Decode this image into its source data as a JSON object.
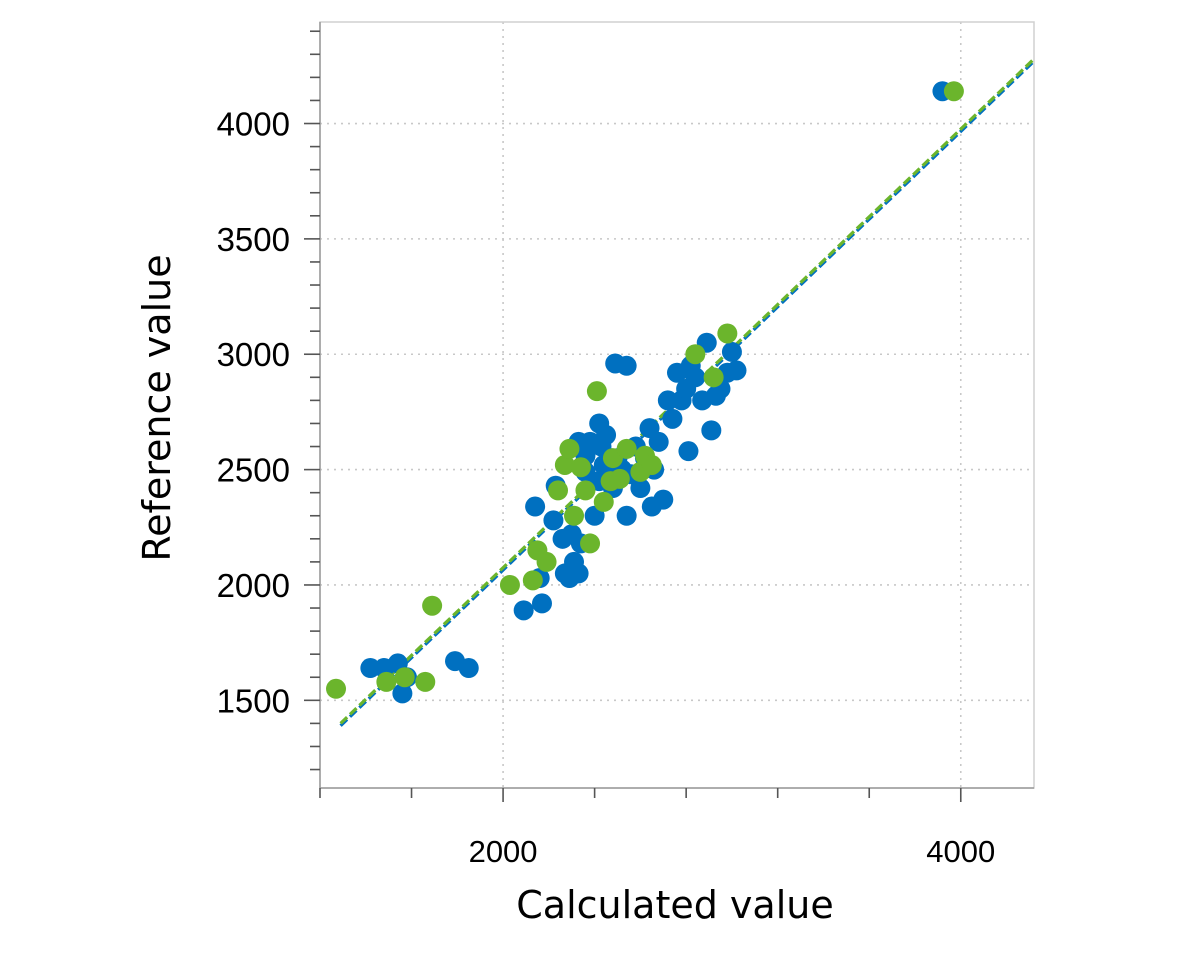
{
  "chart_data": {
    "type": "scatter",
    "title": "",
    "xlabel": "Calculated value",
    "ylabel": "Reference value",
    "xlim": [
      1200,
      4320
    ],
    "ylim": [
      1120,
      4440
    ],
    "x_ticks": [
      2000,
      4000
    ],
    "y_ticks": [
      1500,
      2000,
      2500,
      3000,
      3500,
      4000
    ],
    "x_minor_step": 400,
    "y_minor_step": 100,
    "grid": true,
    "legend": "none",
    "series": [
      {
        "color": "#0070C0",
        "points": [
          [
            1420,
            1640
          ],
          [
            1480,
            1640
          ],
          [
            1540,
            1660
          ],
          [
            1560,
            1530
          ],
          [
            1580,
            1600
          ],
          [
            1790,
            1670
          ],
          [
            1850,
            1640
          ],
          [
            2090,
            1890
          ],
          [
            2140,
            2340
          ],
          [
            2160,
            2030
          ],
          [
            2170,
            1920
          ],
          [
            2220,
            2280
          ],
          [
            2230,
            2430
          ],
          [
            2260,
            2200
          ],
          [
            2270,
            2050
          ],
          [
            2290,
            2030
          ],
          [
            2300,
            2220
          ],
          [
            2310,
            2100
          ],
          [
            2330,
            2050
          ],
          [
            2340,
            2180
          ],
          [
            2330,
            2620
          ],
          [
            2360,
            2490
          ],
          [
            2360,
            2560
          ],
          [
            2380,
            2620
          ],
          [
            2400,
            2300
          ],
          [
            2420,
            2450
          ],
          [
            2420,
            2700
          ],
          [
            2430,
            2600
          ],
          [
            2440,
            2520
          ],
          [
            2450,
            2650
          ],
          [
            2460,
            2480
          ],
          [
            2470,
            2550
          ],
          [
            2480,
            2420
          ],
          [
            2490,
            2960
          ],
          [
            2500,
            2550
          ],
          [
            2520,
            2500
          ],
          [
            2540,
            2950
          ],
          [
            2540,
            2300
          ],
          [
            2560,
            2480
          ],
          [
            2580,
            2600
          ],
          [
            2600,
            2420
          ],
          [
            2620,
            2550
          ],
          [
            2640,
            2680
          ],
          [
            2650,
            2340
          ],
          [
            2660,
            2500
          ],
          [
            2680,
            2620
          ],
          [
            2700,
            2370
          ],
          [
            2720,
            2800
          ],
          [
            2740,
            2720
          ],
          [
            2760,
            2920
          ],
          [
            2780,
            2800
          ],
          [
            2800,
            2850
          ],
          [
            2810,
            2580
          ],
          [
            2820,
            2950
          ],
          [
            2840,
            2900
          ],
          [
            2870,
            2800
          ],
          [
            2890,
            3050
          ],
          [
            2910,
            2670
          ],
          [
            2930,
            2820
          ],
          [
            2950,
            2850
          ],
          [
            2980,
            2920
          ],
          [
            3000,
            3010
          ],
          [
            3020,
            2930
          ],
          [
            3920,
            4140
          ]
        ]
      },
      {
        "color": "#6BB52C",
        "points": [
          [
            1270,
            1550
          ],
          [
            1490,
            1580
          ],
          [
            1570,
            1600
          ],
          [
            1660,
            1580
          ],
          [
            1690,
            1910
          ],
          [
            2030,
            2000
          ],
          [
            2130,
            2020
          ],
          [
            2150,
            2150
          ],
          [
            2190,
            2100
          ],
          [
            2240,
            2410
          ],
          [
            2270,
            2520
          ],
          [
            2290,
            2590
          ],
          [
            2310,
            2300
          ],
          [
            2340,
            2510
          ],
          [
            2360,
            2410
          ],
          [
            2380,
            2180
          ],
          [
            2410,
            2840
          ],
          [
            2440,
            2360
          ],
          [
            2470,
            2450
          ],
          [
            2480,
            2550
          ],
          [
            2510,
            2460
          ],
          [
            2540,
            2590
          ],
          [
            2600,
            2490
          ],
          [
            2620,
            2560
          ],
          [
            2650,
            2520
          ],
          [
            2840,
            3000
          ],
          [
            2920,
            2900
          ],
          [
            2980,
            3090
          ],
          [
            3970,
            4140
          ]
        ]
      }
    ],
    "fit_lines": [
      {
        "color": "#0070C0",
        "dashed": true,
        "from": [
          1290,
          1390
        ],
        "to": [
          4320,
          4270
        ]
      },
      {
        "color": "#6BB52C",
        "dashed": true,
        "from": [
          1290,
          1400
        ],
        "to": [
          4320,
          4280
        ]
      }
    ]
  }
}
